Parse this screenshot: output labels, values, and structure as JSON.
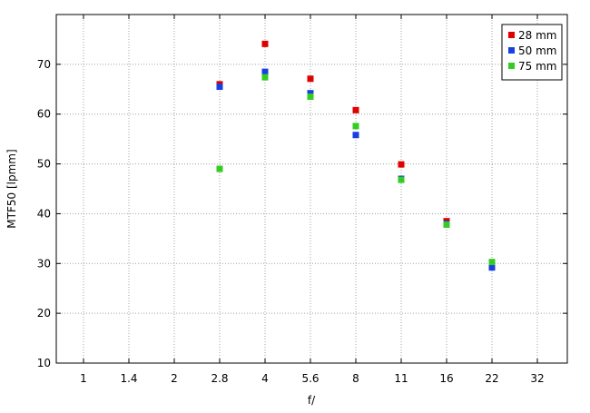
{
  "chart_data": {
    "type": "scatter",
    "xlabel": "f/",
    "ylabel": "MTF50 [lpmm]",
    "x_categories": [
      "1",
      "1.4",
      "2",
      "2.8",
      "4",
      "5.6",
      "8",
      "11",
      "16",
      "22",
      "32"
    ],
    "ylim": [
      10,
      80
    ],
    "yticks": [
      10,
      20,
      30,
      40,
      50,
      60,
      70
    ],
    "grid": true,
    "legend_position": "top-right",
    "series": [
      {
        "name": "28 mm",
        "color": "#e00000",
        "points": [
          {
            "x": "2.8",
            "y": 66.0
          },
          {
            "x": "4",
            "y": 74.1
          },
          {
            "x": "5.6",
            "y": 67.1
          },
          {
            "x": "8",
            "y": 60.8
          },
          {
            "x": "11",
            "y": 49.9
          },
          {
            "x": "16",
            "y": 38.5
          },
          {
            "x": "22",
            "y": 30.0
          }
        ]
      },
      {
        "name": "50 mm",
        "color": "#1a3fe0",
        "points": [
          {
            "x": "2.8",
            "y": 65.5
          },
          {
            "x": "4",
            "y": 68.5
          },
          {
            "x": "5.6",
            "y": 64.2
          },
          {
            "x": "8",
            "y": 55.8
          },
          {
            "x": "11",
            "y": 47.0
          },
          {
            "x": "16",
            "y": 38.0
          },
          {
            "x": "22",
            "y": 29.2
          }
        ]
      },
      {
        "name": "75 mm",
        "color": "#33cc22",
        "points": [
          {
            "x": "2.8",
            "y": 49.0
          },
          {
            "x": "4",
            "y": 67.4
          },
          {
            "x": "5.6",
            "y": 63.5
          },
          {
            "x": "8",
            "y": 57.6
          },
          {
            "x": "11",
            "y": 46.8
          },
          {
            "x": "16",
            "y": 37.8
          },
          {
            "x": "22",
            "y": 30.3
          }
        ]
      }
    ]
  }
}
